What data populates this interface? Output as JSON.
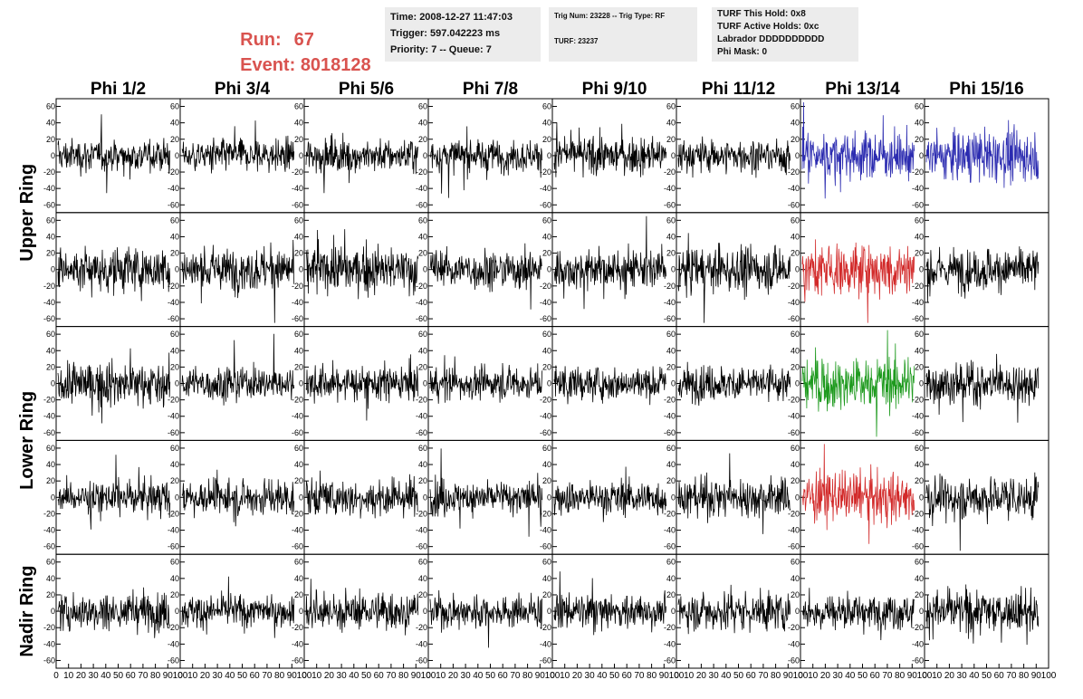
{
  "header": {
    "run_label": "Run:",
    "run_value": "67",
    "event_label": "Event:",
    "event_value": "8018128",
    "time_line": "Time: 2008-12-27 11:47:03",
    "trigger_line": "Trigger: 597.042223 ms",
    "priority_line": "Priority: 7 -- Queue: 7",
    "trig_num_line": "Trig Num: 23228 -- Trig Type: RF",
    "turf_line": "TURF: 23237",
    "turf_hold_line": "TURF This Hold: 0x8",
    "turf_active_line": "TURF Active Holds: 0xc",
    "labrador_line": "Labrador DDDDDDDDDD",
    "phi_mask_line": "Phi Mask: 0"
  },
  "chart_data": {
    "type": "line",
    "title": "",
    "columns": [
      "Phi 1/2",
      "Phi 3/4",
      "Phi 5/6",
      "Phi 7/8",
      "Phi 9/10",
      "Phi 11/12",
      "Phi 13/14",
      "Phi 15/16"
    ],
    "ring_labels": [
      "Upper Ring",
      "Lower Ring",
      "Nadir Ring"
    ],
    "y_range": [
      -65,
      65
    ],
    "y_ticks": [
      -60,
      -40,
      -20,
      0,
      20,
      40,
      60
    ],
    "x_range": [
      0,
      100
    ],
    "x_tick_labels": [
      "0",
      "10",
      "20",
      "30",
      "40",
      "50",
      "60",
      "70",
      "80",
      "90",
      "100"
    ],
    "grid": false,
    "num_points": 256,
    "panel_rows": [
      {
        "ring": "Upper Ring",
        "amplitudes": [
          10,
          10,
          10,
          10,
          11,
          10,
          14,
          15
        ],
        "colors": [
          "#000000",
          "#000000",
          "#000000",
          "#000000",
          "#000000",
          "#000000",
          "#2b2bb0",
          "#2b2bb0"
        ]
      },
      {
        "ring": "Upper Ring",
        "amplitudes": [
          14,
          13,
          14,
          12,
          12,
          13,
          16,
          13
        ],
        "colors": [
          "#000000",
          "#000000",
          "#000000",
          "#000000",
          "#000000",
          "#000000",
          "#d22a2a",
          "#000000"
        ]
      },
      {
        "ring": "Lower Ring",
        "amplitudes": [
          13,
          10,
          11,
          10,
          10,
          11,
          16,
          12
        ],
        "colors": [
          "#000000",
          "#000000",
          "#000000",
          "#000000",
          "#000000",
          "#000000",
          "#1e9a1e",
          "#000000"
        ]
      },
      {
        "ring": "Lower Ring",
        "amplitudes": [
          10,
          11,
          11,
          11,
          10,
          12,
          15,
          13
        ],
        "colors": [
          "#000000",
          "#000000",
          "#000000",
          "#000000",
          "#000000",
          "#000000",
          "#d22a2a",
          "#000000"
        ]
      },
      {
        "ring": "Nadir Ring",
        "amplitudes": [
          12,
          10,
          11,
          10,
          10,
          12,
          11,
          13
        ],
        "colors": [
          "#000000",
          "#000000",
          "#000000",
          "#000000",
          "#000000",
          "#000000",
          "#000000",
          "#000000"
        ]
      }
    ]
  }
}
